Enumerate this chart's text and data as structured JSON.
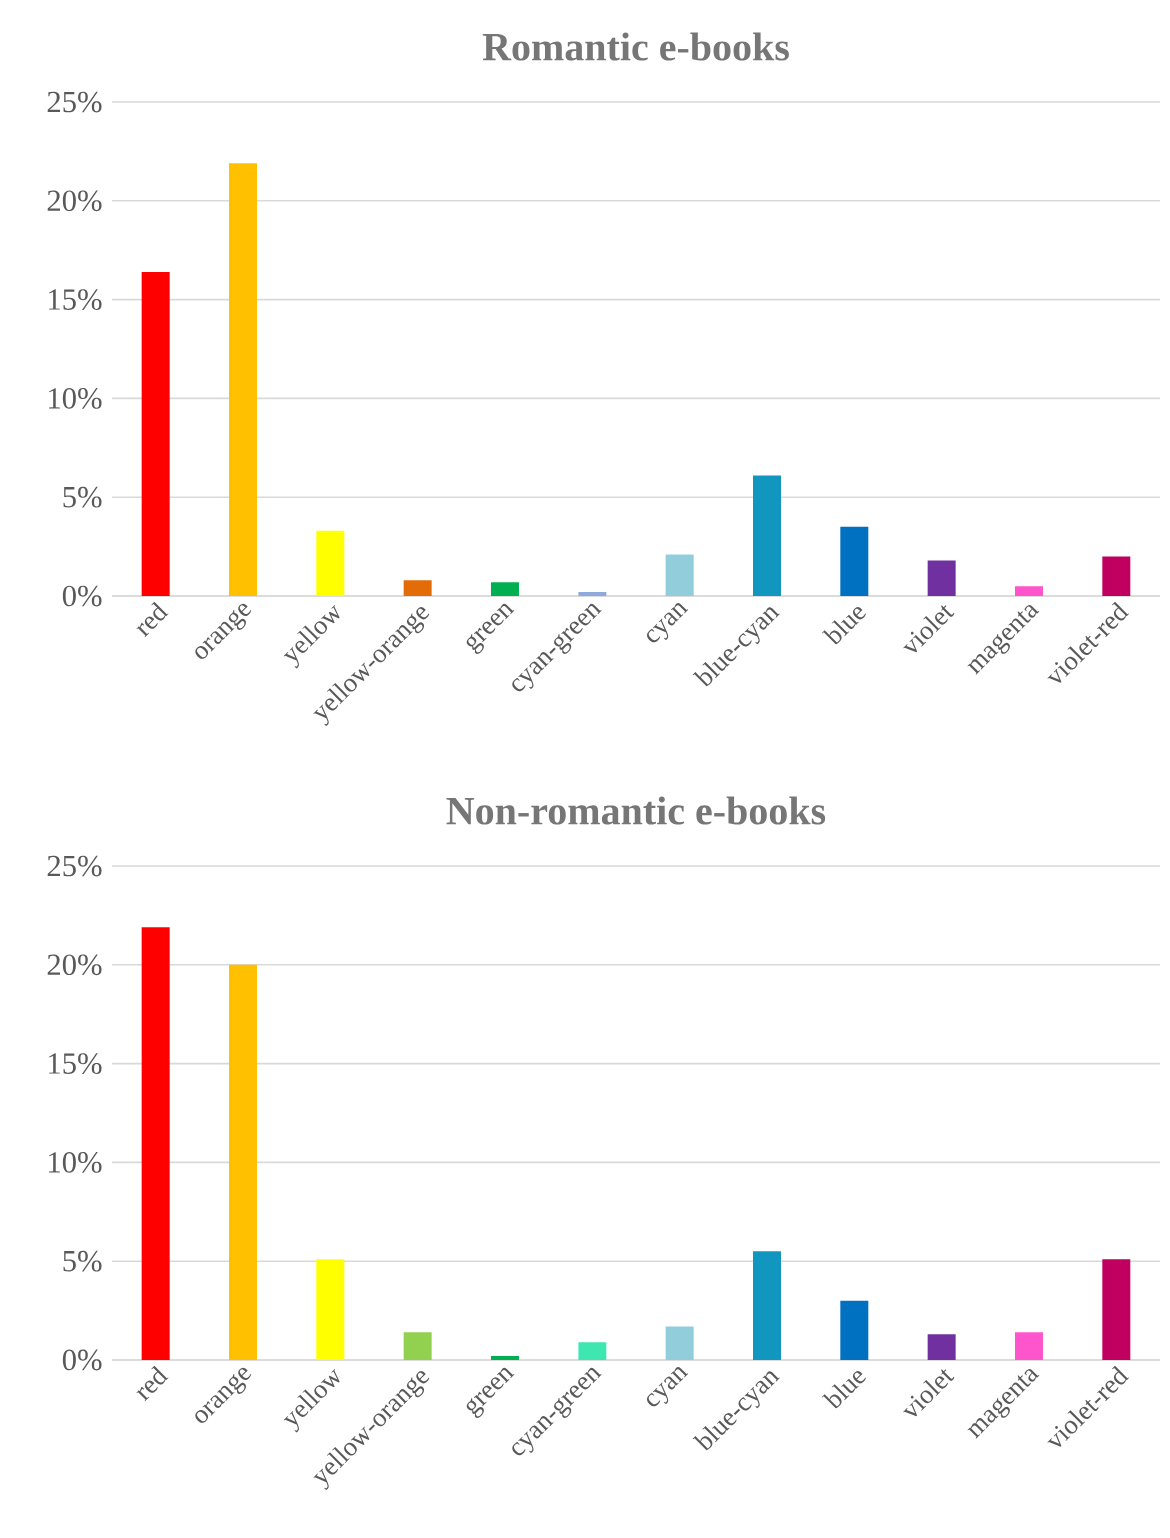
{
  "chart_data": [
    {
      "type": "bar",
      "title": "Romantic e-books",
      "categories": [
        "red",
        "orange",
        "yellow",
        "yellow-orange",
        "green",
        "cyan-green",
        "cyan",
        "blue-cyan",
        "blue",
        "violet",
        "magenta",
        "violet-red"
      ],
      "values": [
        16.4,
        21.9,
        3.3,
        0.8,
        0.7,
        0.2,
        2.1,
        6.1,
        3.5,
        1.8,
        0.5,
        2.0
      ],
      "colors": [
        "#ff0000",
        "#ffc000",
        "#ffff00",
        "#e36c09",
        "#00b050",
        "#8eaadb",
        "#92cddc",
        "#1196c0",
        "#0070c0",
        "#7030a0",
        "#ff55cc",
        "#c00060"
      ],
      "ylim": [
        0,
        25
      ],
      "yticks": [
        {
          "value": 0,
          "label": "0%"
        },
        {
          "value": 5,
          "label": "5%"
        },
        {
          "value": 10,
          "label": "10%"
        },
        {
          "value": 15,
          "label": "15%"
        },
        {
          "value": 20,
          "label": "20%"
        },
        {
          "value": 25,
          "label": "25%"
        }
      ],
      "grid": "y"
    },
    {
      "type": "bar",
      "title": "Non-romantic e-books",
      "categories": [
        "red",
        "orange",
        "yellow",
        "yellow-orange",
        "green",
        "cyan-green",
        "cyan",
        "blue-cyan",
        "blue",
        "violet",
        "magenta",
        "violet-red"
      ],
      "values": [
        21.9,
        20.0,
        5.1,
        1.4,
        0.2,
        0.9,
        1.7,
        5.5,
        3.0,
        1.3,
        1.4,
        5.1
      ],
      "colors": [
        "#ff0000",
        "#ffc000",
        "#ffff00",
        "#92d050",
        "#00b050",
        "#3ee6b0",
        "#92cddc",
        "#1196c0",
        "#0070c0",
        "#7030a0",
        "#ff55cc",
        "#c00060"
      ],
      "ylim": [
        0,
        25
      ],
      "yticks": [
        {
          "value": 0,
          "label": "0%"
        },
        {
          "value": 5,
          "label": "5%"
        },
        {
          "value": 10,
          "label": "10%"
        },
        {
          "value": 15,
          "label": "15%"
        },
        {
          "value": 20,
          "label": "20%"
        },
        {
          "value": 25,
          "label": "25%"
        }
      ],
      "grid": "y"
    }
  ]
}
